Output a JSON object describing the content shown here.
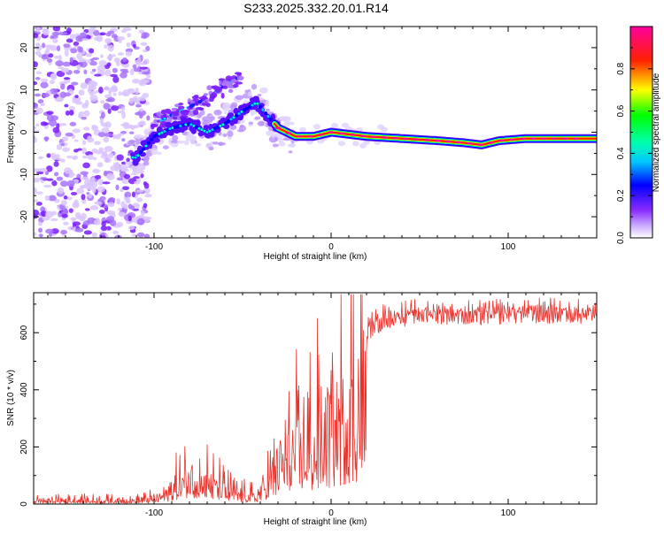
{
  "title": "S233.2025.332.20.01.R14",
  "chart_data": [
    {
      "type": "heatmap",
      "xlabel": "Height of straight line (km)",
      "ylabel": "Frequency (Hz)",
      "xlim": [
        -168,
        150
      ],
      "ylim": [
        -25,
        25
      ],
      "xticks": [
        -100,
        0,
        100
      ],
      "xtick_labels": [
        "-100",
        "0",
        "100"
      ],
      "yticks": [
        -20,
        -10,
        0,
        10,
        20
      ],
      "ytick_labels": [
        "-20",
        "-10",
        "0",
        "10",
        "20"
      ],
      "colorbar": {
        "label": "Normalized spectral amplitude",
        "range": [
          0,
          1
        ],
        "ticks": [
          0,
          0.2,
          0.4,
          0.6,
          0.8
        ],
        "tick_labels": [
          "0.0",
          "0.2",
          "0.4",
          "0.6",
          "0.8"
        ],
        "colors": [
          "#ffffff",
          "#a060ff",
          "#0000ff",
          "#00ffff",
          "#00ff00",
          "#ffff00",
          "#ff0000",
          "#ff00a0"
        ]
      },
      "ridge": {
        "x": [
          -110,
          -100,
          -90,
          -80,
          -70,
          -60,
          -50,
          -42,
          -38,
          -30,
          -20,
          -10,
          0,
          10,
          20,
          40,
          60,
          75,
          85,
          95,
          110,
          150
        ],
        "y": [
          -6,
          -1,
          1,
          2,
          0,
          2,
          5,
          7,
          5,
          1,
          -1,
          -1,
          0,
          -0.5,
          -1,
          -1.5,
          -2,
          -2.5,
          -3,
          -2,
          -1.5,
          -1.5
        ]
      },
      "branch": {
        "x": [
          -100,
          -90,
          -80,
          -70,
          -60,
          -52
        ],
        "y": [
          2,
          4,
          6,
          8,
          11,
          13
        ]
      }
    },
    {
      "type": "line",
      "xlabel": "Height of straight line (km)",
      "ylabel": "SNR (10 * v/v)",
      "xlim": [
        -168,
        150
      ],
      "ylim": [
        0,
        740
      ],
      "xticks": [
        -100,
        0,
        100
      ],
      "xtick_labels": [
        "-100",
        "0",
        "100"
      ],
      "yticks": [
        0,
        200,
        400,
        600
      ],
      "ytick_labels": [
        "0",
        "200",
        "400",
        "600"
      ],
      "series": [
        {
          "name": "SNR",
          "color": "#e8332d",
          "envelope_x": [
            -168,
            -110,
            -100,
            -92,
            -85,
            -80,
            -75,
            -70,
            -65,
            -58,
            -50,
            -42,
            -36,
            -30,
            -20,
            -10,
            0,
            10,
            20,
            30,
            40,
            60,
            80,
            100,
            120,
            150
          ],
          "envelope_y": [
            20,
            20,
            30,
            60,
            120,
            160,
            140,
            130,
            100,
            70,
            50,
            40,
            120,
            220,
            300,
            340,
            420,
            520,
            600,
            640,
            650,
            660,
            650,
            660,
            660,
            660
          ]
        }
      ]
    }
  ]
}
